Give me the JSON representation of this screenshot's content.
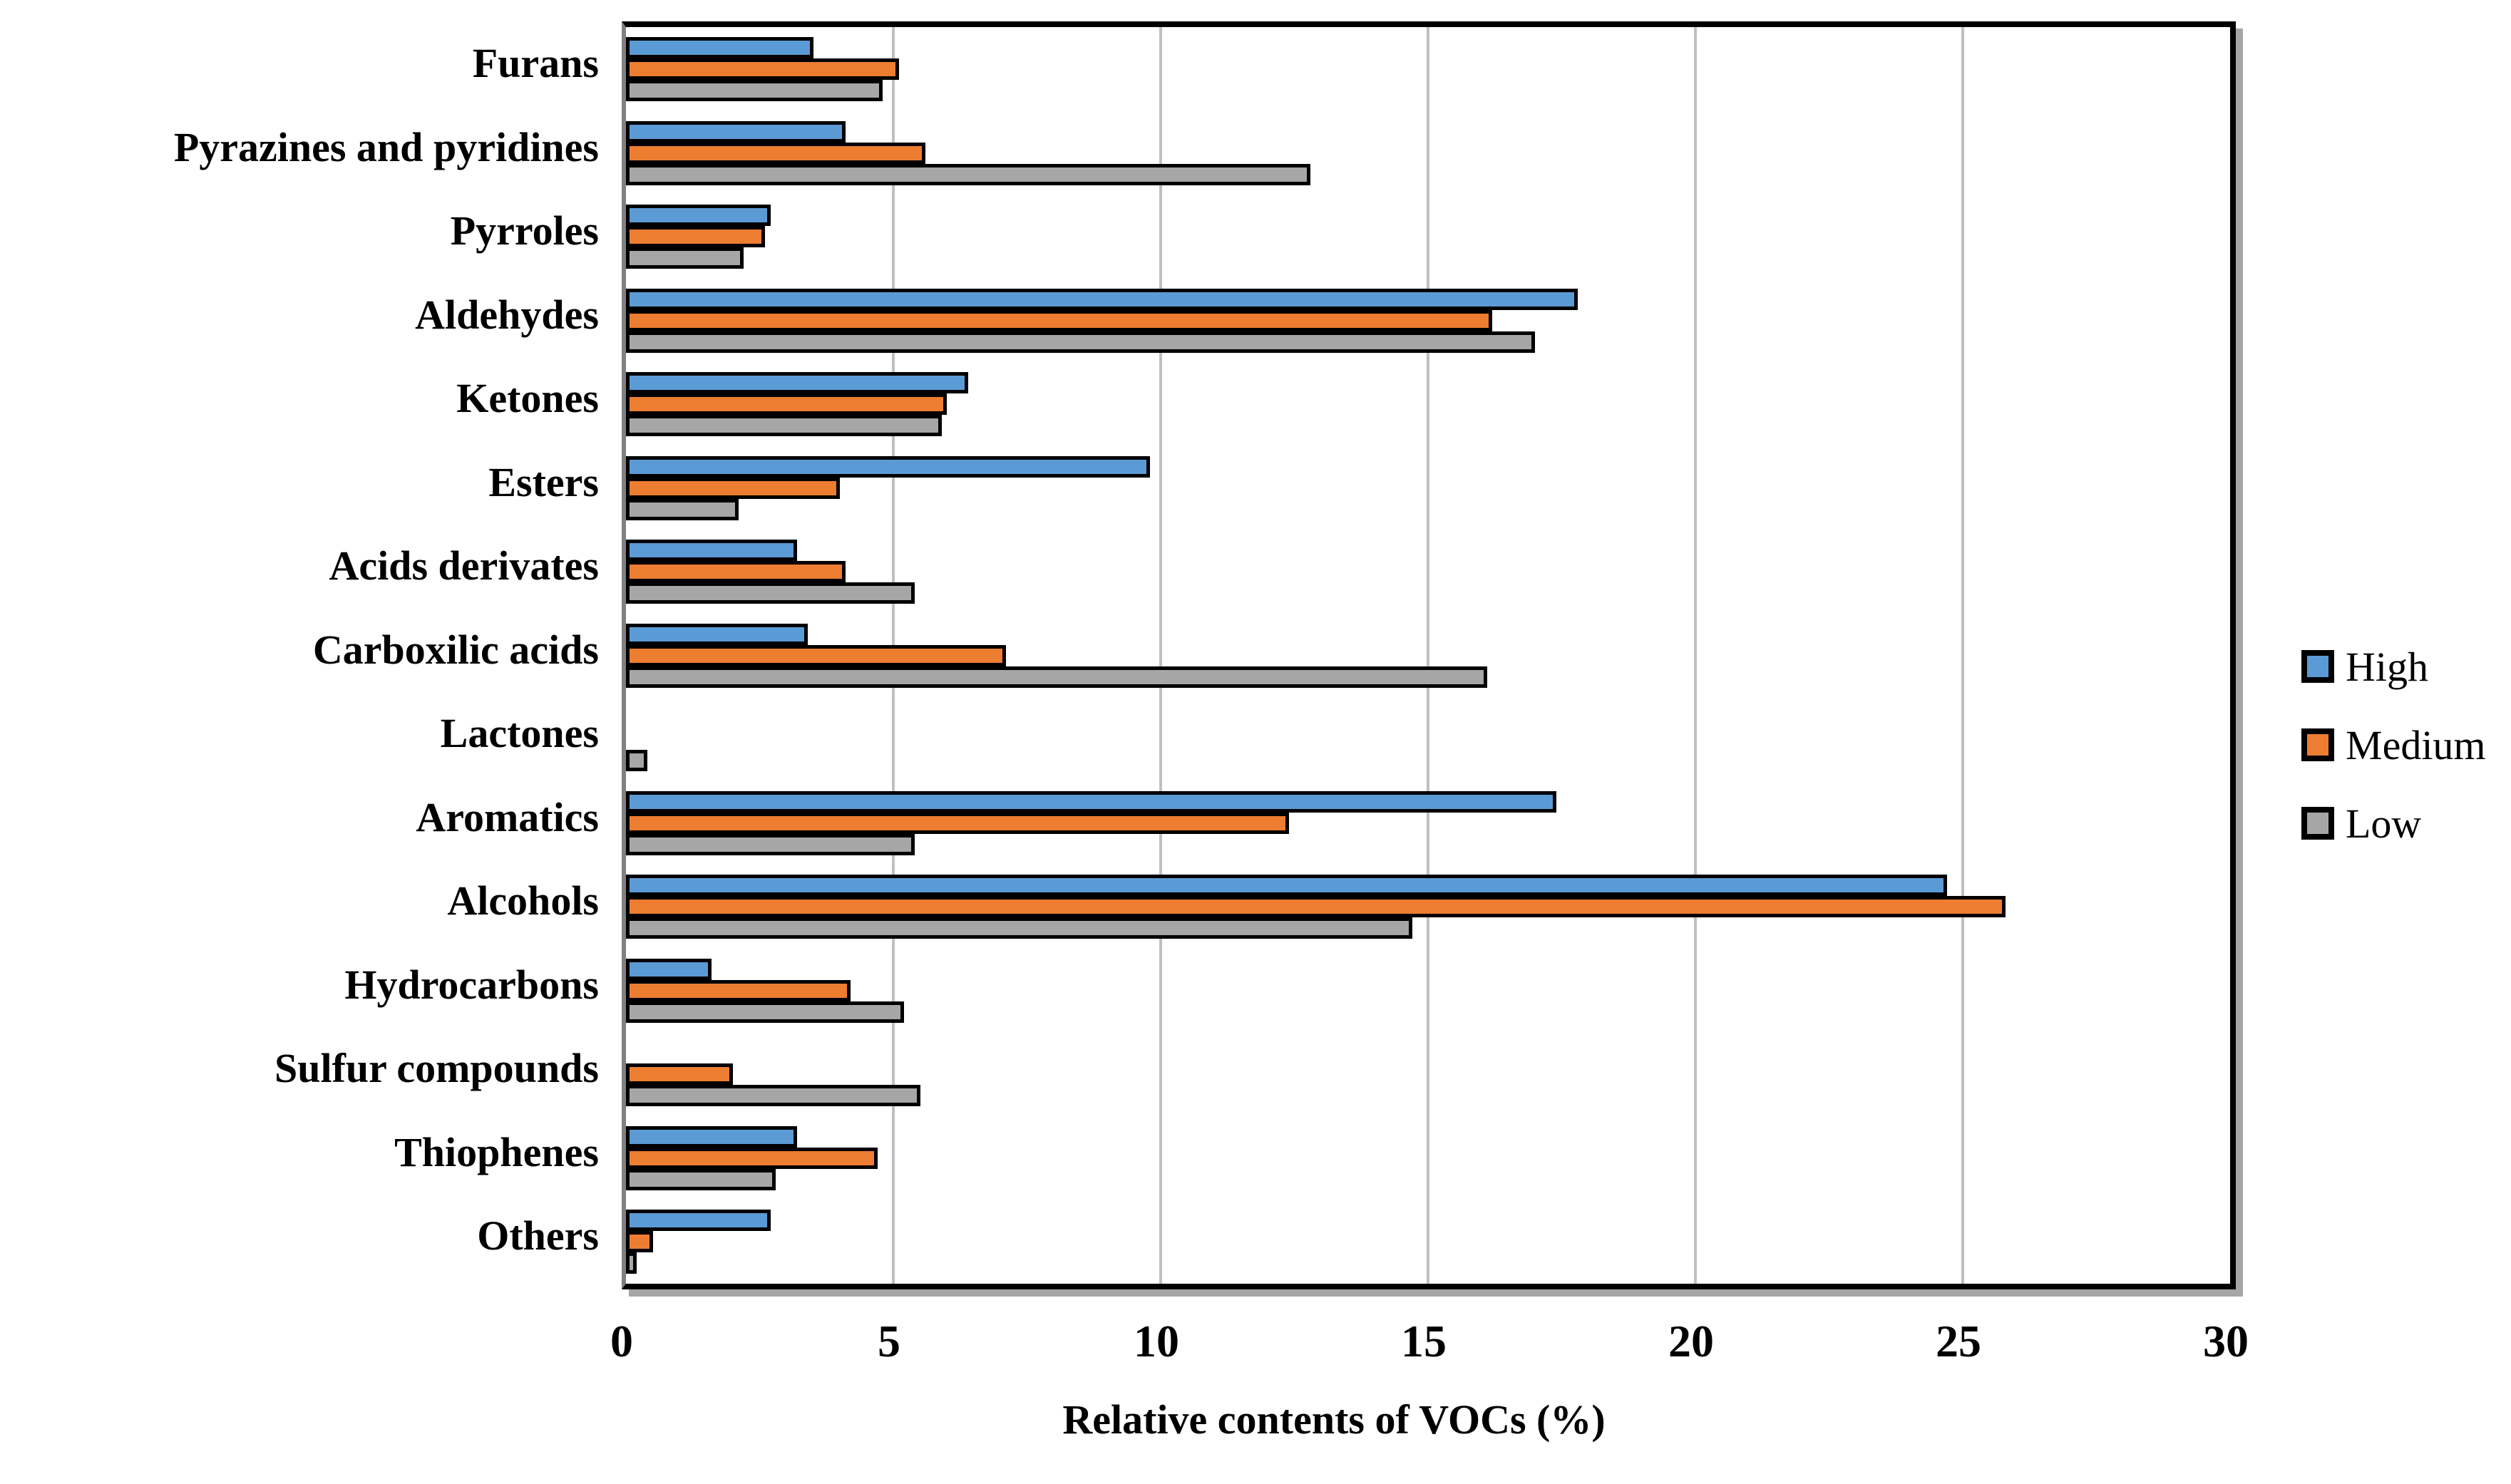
{
  "chart_data": {
    "type": "bar",
    "orientation": "horizontal",
    "title": "",
    "xlabel": "Relative contents of VOCs (%)",
    "ylabel": "",
    "xlim": [
      0,
      30
    ],
    "xticks": [
      0,
      5,
      10,
      15,
      20,
      25,
      30
    ],
    "grid": "vertical-light-gray",
    "categories": [
      "Furans",
      "Pyrazines and pyridines",
      "Pyrroles",
      "Aldehydes",
      "Ketones",
      "Esters",
      "Acids derivates",
      "Carboxilic acids",
      "Lactones",
      "Aromatics",
      "Alcohols",
      "Hydrocarbons",
      "Sulfur compounds",
      "Thiophenes",
      "Others"
    ],
    "series": [
      {
        "name": "High",
        "color": "#5B9BD5",
        "values": [
          3.5,
          4.1,
          2.7,
          17.8,
          6.4,
          9.8,
          3.2,
          3.4,
          0,
          17.4,
          24.7,
          1.6,
          0,
          3.2,
          2.7
        ]
      },
      {
        "name": "Medium",
        "color": "#ED7D31",
        "values": [
          5.1,
          5.6,
          2.6,
          16.2,
          6.0,
          4.0,
          4.1,
          7.1,
          0,
          12.4,
          25.8,
          4.2,
          2.0,
          4.7,
          0.5
        ]
      },
      {
        "name": "Low",
        "color": "#A6A6A6",
        "values": [
          4.8,
          12.8,
          2.2,
          17.0,
          5.9,
          2.1,
          5.4,
          16.1,
          0.4,
          5.4,
          14.7,
          5.2,
          5.5,
          2.8,
          0.2
        ]
      }
    ],
    "bar_outline_color": "#000000",
    "gridline_color": "#C0C0C0",
    "legend": {
      "position": "right-middle",
      "entries": [
        "High",
        "Medium",
        "Low"
      ]
    }
  }
}
